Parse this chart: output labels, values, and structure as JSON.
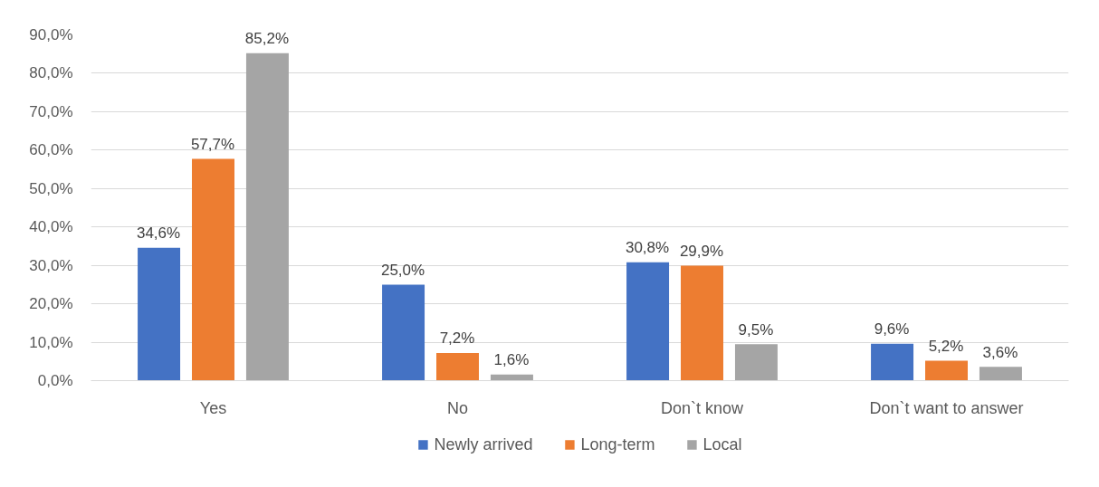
{
  "chart_data": {
    "type": "bar",
    "categories": [
      "Yes",
      "No",
      "Don`t know",
      "Don`t want to answer"
    ],
    "series": [
      {
        "name": "Newly arrived",
        "color": "#4472c4",
        "values": [
          34.6,
          25.0,
          30.8,
          9.6
        ],
        "value_labels": [
          "34,6%",
          "25,0%",
          "30,8%",
          "9,6%"
        ]
      },
      {
        "name": "Long-term",
        "color": "#ed7d31",
        "values": [
          57.7,
          7.2,
          29.9,
          5.2
        ],
        "value_labels": [
          "57,7%",
          "7,2%",
          "29,9%",
          "5,2%"
        ]
      },
      {
        "name": "Local",
        "color": "#a5a5a5",
        "values": [
          85.2,
          1.6,
          9.5,
          3.6
        ],
        "value_labels": [
          "85,2%",
          "1,6%",
          "9,5%",
          "3,6%"
        ]
      }
    ],
    "ylim": [
      0,
      90
    ],
    "yticks": [
      {
        "value": 0,
        "label": "0,0%"
      },
      {
        "value": 10,
        "label": "10,0%"
      },
      {
        "value": 20,
        "label": "20,0%"
      },
      {
        "value": 30,
        "label": "30,0%"
      },
      {
        "value": 40,
        "label": "40,0%"
      },
      {
        "value": 50,
        "label": "50,0%"
      },
      {
        "value": 60,
        "label": "60,0%"
      },
      {
        "value": 70,
        "label": "70,0%"
      },
      {
        "value": 80,
        "label": "80,0%"
      },
      {
        "value": 90,
        "label": "90,0%"
      }
    ],
    "grid": "y",
    "legend": "bottom"
  }
}
